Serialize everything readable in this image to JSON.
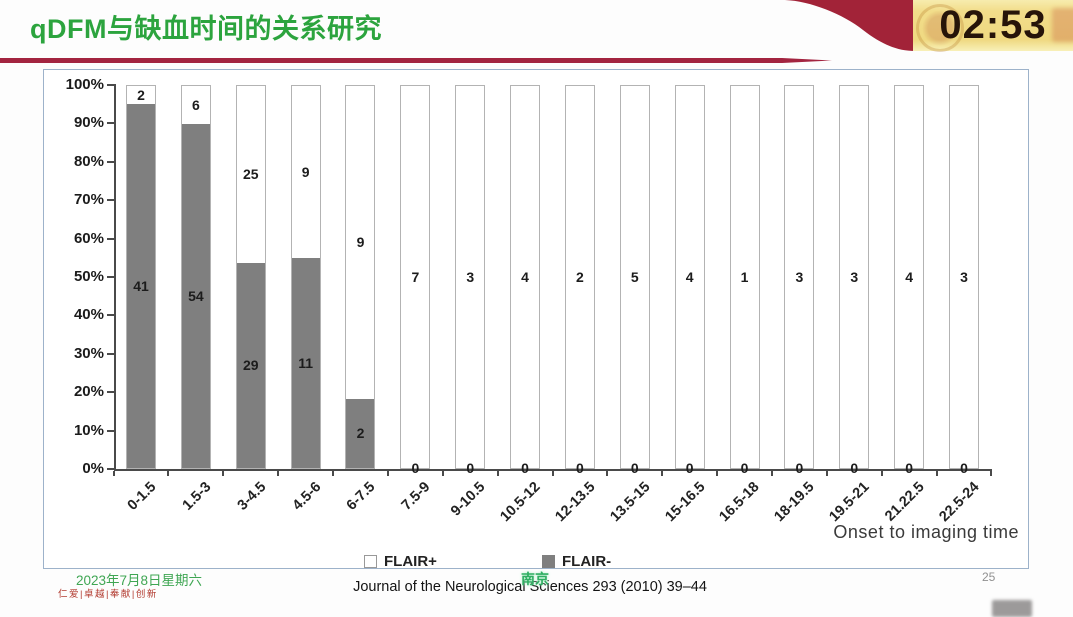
{
  "header": {
    "title": "qDFM与缺血时间的关系研究",
    "timer": "02:53"
  },
  "chart_data": {
    "type": "bar",
    "stacked": true,
    "normalized_to_100pct": true,
    "title": "",
    "xlabel": "Onset to imaging time",
    "ylabel": "",
    "ylim": [
      0,
      100
    ],
    "y_ticks": [
      "100%",
      "90%",
      "80%",
      "70%",
      "60%",
      "50%",
      "40%",
      "30%",
      "20%",
      "10%",
      "0%"
    ],
    "categories": [
      "0-1.5",
      "1.5-3",
      "3-4.5",
      "4.5-6",
      "6-7.5",
      "7.5-9",
      "9-10.5",
      "10.5-12",
      "12-13.5",
      "13.5-15",
      "15-16.5",
      "16.5-18",
      "18-19.5",
      "19.5-21",
      "21.22.5",
      "22.5-24"
    ],
    "series": [
      {
        "name": "FLAIR+",
        "color": "#ffffff",
        "values": [
          2,
          6,
          25,
          9,
          9,
          7,
          3,
          4,
          2,
          5,
          4,
          1,
          3,
          3,
          4,
          3
        ]
      },
      {
        "name": "FLAIR-",
        "color": "#7f7f7f",
        "values": [
          41,
          54,
          29,
          11,
          2,
          0,
          0,
          0,
          0,
          0,
          0,
          0,
          0,
          0,
          0,
          0
        ]
      }
    ],
    "legend_position": "bottom",
    "grid": false
  },
  "footer": {
    "date": "2023年7月8日星期六",
    "motto": "仁爱|卓越|奉献|创新",
    "citation": "Journal of the Neurological Sciences 293 (2010) 39–44",
    "watermark": "南京",
    "page_number": "25"
  },
  "colors": {
    "title_green": "#2ca43e",
    "accent_red": "#a32440",
    "timer_gold": "#efd981",
    "bar_gray": "#7f7f7f",
    "panel_border": "#9db2ca"
  }
}
